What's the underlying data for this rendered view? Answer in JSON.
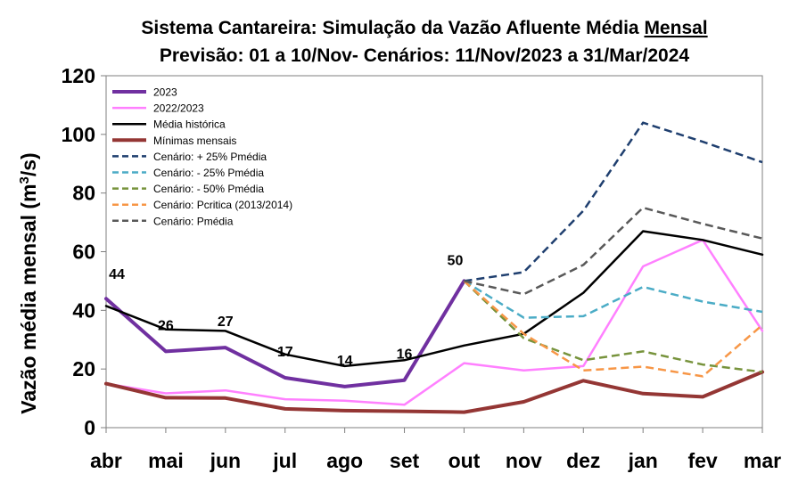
{
  "chart_data": {
    "type": "line",
    "title_line1_pre": "Sistema Cantareira: Simulação da Vazão Afluente Média ",
    "title_line1_underlined": "Mensal",
    "title_line2": "Previsão: 01 a 10/Nov- Cenários: 11/Nov/2023 a 31/Mar/2024",
    "ylabel_pre": "Vazão média mensal (m",
    "ylabel_sup": "3",
    "ylabel_post": "/s)",
    "xlabel": "",
    "ylim": [
      0,
      120
    ],
    "y_ticks": [
      0,
      20,
      40,
      60,
      80,
      100,
      120
    ],
    "categories": [
      "abr",
      "mai",
      "jun",
      "jul",
      "ago",
      "set",
      "out",
      "nov",
      "dez",
      "jan",
      "fev",
      "mar"
    ],
    "grid": false,
    "legend_position": "top-left",
    "series": [
      {
        "name": "2023",
        "color": "#7030a0",
        "dash": "solid",
        "width": 4,
        "values": [
          44,
          26,
          27.3,
          17,
          14,
          16.2,
          50,
          null,
          null,
          null,
          null,
          null
        ]
      },
      {
        "name": "2022/2023",
        "color": "#ff80ff",
        "dash": "solid",
        "width": 2.5,
        "values": [
          15,
          11.7,
          12.7,
          9.7,
          9.2,
          7.8,
          22,
          19.5,
          21,
          55,
          64,
          33
        ]
      },
      {
        "name": "Média histórica",
        "color": "#000000",
        "dash": "solid",
        "width": 2.5,
        "values": [
          41.5,
          33.5,
          33,
          25,
          21,
          23,
          28,
          32,
          46,
          67,
          64,
          59
        ]
      },
      {
        "name": "Mínimas mensais",
        "color": "#943634",
        "dash": "solid",
        "width": 4,
        "values": [
          15,
          10.2,
          10.1,
          6.4,
          5.8,
          5.6,
          5.3,
          8.8,
          16,
          11.6,
          10.5,
          19
        ]
      },
      {
        "name": "Cenário: + 25% Pmédia",
        "color": "#1f3f6f",
        "dash": "dashed",
        "width": 2.5,
        "values": [
          null,
          null,
          null,
          null,
          null,
          null,
          50,
          53,
          74,
          104,
          97.5,
          90.5
        ]
      },
      {
        "name": "Cenário: - 25% Pmédia",
        "color": "#4bacc6",
        "dash": "dashed",
        "width": 2.5,
        "values": [
          null,
          null,
          null,
          null,
          null,
          null,
          50,
          37.5,
          38,
          48,
          43,
          39.5
        ]
      },
      {
        "name": "Cenário: - 50% Pmédia",
        "color": "#77933c",
        "dash": "dashed",
        "width": 2.5,
        "values": [
          null,
          null,
          null,
          null,
          null,
          null,
          50,
          30.5,
          23,
          26,
          21.5,
          19
        ]
      },
      {
        "name": "Cenário: Pcritica (2013/2014)",
        "color": "#f79646",
        "dash": "dashed",
        "width": 2.5,
        "values": [
          null,
          null,
          null,
          null,
          null,
          null,
          50,
          32,
          19.5,
          20.8,
          17.5,
          35
        ]
      },
      {
        "name": "Cenário: Pmédia",
        "color": "#595959",
        "dash": "dashed",
        "width": 2.5,
        "values": [
          null,
          null,
          null,
          null,
          null,
          null,
          50,
          45.5,
          55.5,
          75,
          69.5,
          64.5
        ]
      }
    ],
    "data_labels": [
      {
        "category": "abr",
        "text": "44"
      },
      {
        "category": "mai",
        "text": "26"
      },
      {
        "category": "jun",
        "text": "27"
      },
      {
        "category": "jul",
        "text": "17"
      },
      {
        "category": "ago",
        "text": "14"
      },
      {
        "category": "set",
        "text": "16"
      },
      {
        "category": "out",
        "text": "50"
      }
    ]
  }
}
